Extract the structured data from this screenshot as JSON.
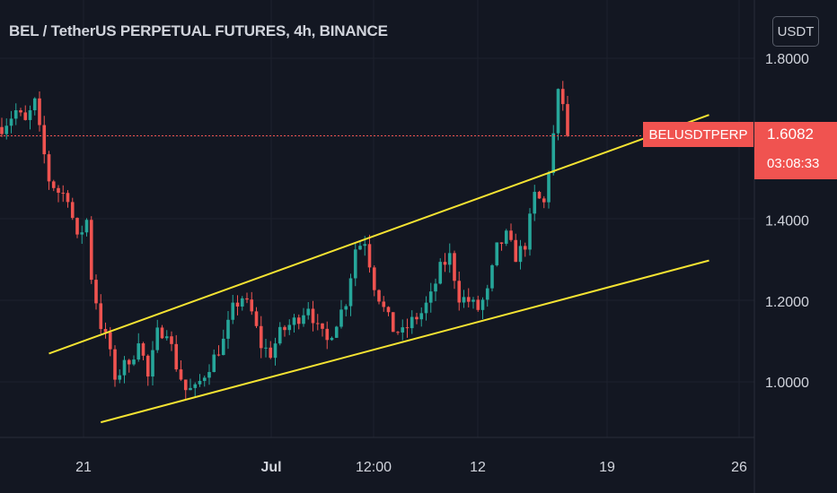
{
  "header": {
    "title": "BEL / TetherUS PERPETUAL FUTURES, 4h, BINANCE",
    "currency_button": "USDT"
  },
  "last_price": {
    "symbol": "BELUSDTPERP",
    "price": "1.6082",
    "countdown": "03:08:33",
    "value": 1.6082
  },
  "colors": {
    "background": "#131722",
    "up": "#26a69a",
    "down": "#ef5350",
    "trendline": "#f5e332",
    "text": "#d1d4dc"
  },
  "chart_data": {
    "type": "candlestick",
    "interval": "4h",
    "x_tick_labels": [
      "21",
      "Jul",
      "12:00",
      "12",
      "19",
      "26"
    ],
    "y_tick_labels": [
      "1.8000",
      "1.6000",
      "1.4000",
      "1.2000",
      "1.0000"
    ],
    "y_ticks": [
      1.8,
      1.6,
      1.4,
      1.2,
      1.0
    ],
    "ylim": [
      0.86,
      1.86
    ],
    "price_path": [
      [
        0,
        1.63
      ],
      [
        3,
        1.67
      ],
      [
        5,
        1.64
      ],
      [
        7,
        1.69
      ],
      [
        8,
        1.62
      ],
      [
        10,
        1.5
      ],
      [
        12,
        1.47
      ],
      [
        14,
        1.46
      ],
      [
        16,
        1.35
      ],
      [
        18,
        1.4
      ],
      [
        19,
        1.26
      ],
      [
        21,
        1.14
      ],
      [
        23,
        1.08
      ],
      [
        24,
        0.99
      ],
      [
        26,
        1.06
      ],
      [
        27,
        1.03
      ],
      [
        29,
        1.11
      ],
      [
        31,
        1.01
      ],
      [
        33,
        1.12
      ],
      [
        35,
        1.13
      ],
      [
        37,
        1.04
      ],
      [
        39,
        0.98
      ],
      [
        41,
        0.98
      ],
      [
        43,
        1.02
      ],
      [
        45,
        1.06
      ],
      [
        47,
        1.1
      ],
      [
        49,
        1.18
      ],
      [
        51,
        1.21
      ],
      [
        53,
        1.17
      ],
      [
        55,
        1.09
      ],
      [
        57,
        1.07
      ],
      [
        59,
        1.12
      ],
      [
        61,
        1.14
      ],
      [
        63,
        1.16
      ],
      [
        65,
        1.19
      ],
      [
        67,
        1.13
      ],
      [
        69,
        1.1
      ],
      [
        71,
        1.15
      ],
      [
        73,
        1.2
      ],
      [
        75,
        1.33
      ],
      [
        77,
        1.35
      ],
      [
        79,
        1.24
      ],
      [
        81,
        1.18
      ],
      [
        83,
        1.13
      ],
      [
        85,
        1.12
      ],
      [
        87,
        1.15
      ],
      [
        89,
        1.17
      ],
      [
        91,
        1.21
      ],
      [
        93,
        1.28
      ],
      [
        95,
        1.31
      ],
      [
        97,
        1.21
      ],
      [
        99,
        1.2
      ],
      [
        101,
        1.18
      ],
      [
        103,
        1.22
      ],
      [
        105,
        1.33
      ],
      [
        107,
        1.36
      ],
      [
        109,
        1.31
      ],
      [
        111,
        1.34
      ],
      [
        113,
        1.46
      ],
      [
        115,
        1.44
      ],
      [
        117,
        1.61
      ],
      [
        118,
        1.71
      ],
      [
        119,
        1.69
      ],
      [
        120,
        1.6082
      ]
    ],
    "trendlines": [
      {
        "name": "upper",
        "start": [
          10,
          1.07
        ],
        "end": [
          150,
          1.66
        ]
      },
      {
        "name": "lower",
        "start": [
          21,
          0.9
        ],
        "end": [
          150,
          1.3
        ]
      }
    ]
  }
}
